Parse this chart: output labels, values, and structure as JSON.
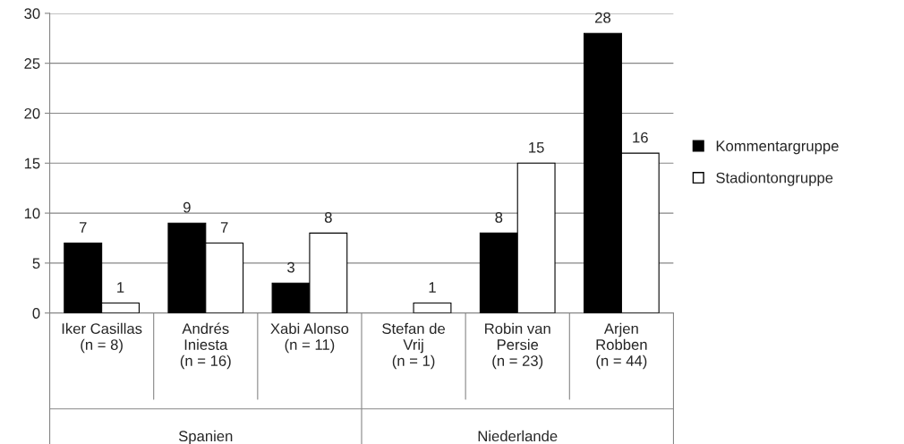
{
  "chart_data": {
    "type": "bar",
    "categories": [
      "Iker Casillas\n(n = 8)",
      "Andrés\nIniesta\n(n = 16)",
      "Xabi Alonso\n(n = 11)",
      "Stefan de\nVrij\n(n = 1)",
      "Robin van\nPersie\n(n = 23)",
      "Arjen\nRobben\n(n = 44)"
    ],
    "series": [
      {
        "name": "Kommentargruppe",
        "color": "#000000",
        "values": [
          7,
          9,
          3,
          null,
          8,
          28
        ]
      },
      {
        "name": "Stadiontongruppe",
        "color": "#ffffff",
        "values": [
          1,
          7,
          8,
          1,
          15,
          16
        ]
      }
    ],
    "annotations": [
      "Spanien",
      "Niederlande"
    ],
    "ylim": [
      0,
      30
    ],
    "yticks": [
      0,
      5,
      10,
      15,
      20,
      25,
      30
    ],
    "grid": "y",
    "legend": "right",
    "data_labels": true
  }
}
